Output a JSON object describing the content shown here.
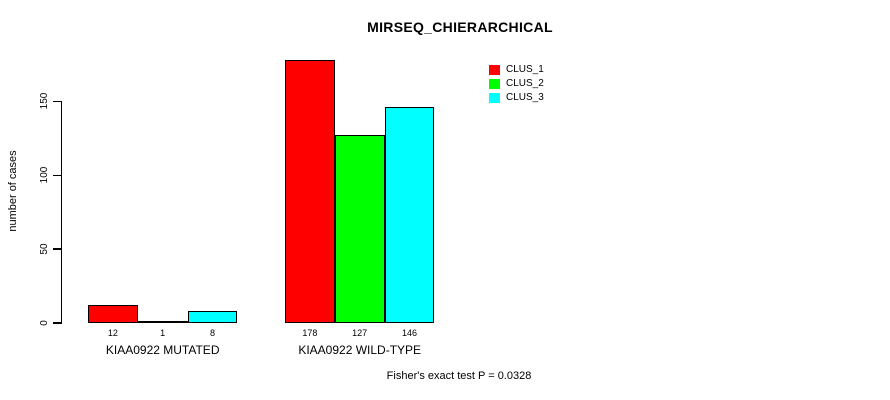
{
  "chart_data": {
    "type": "bar",
    "title": "MIRSEQ_CHIERARCHICAL",
    "ylabel": "number of cases",
    "xlabel": "",
    "categories": [
      "KIAA0922 MUTATED",
      "KIAA0922 WILD-TYPE"
    ],
    "series": [
      {
        "name": "CLUS_1",
        "color": "#ff0000",
        "values": [
          12,
          178
        ]
      },
      {
        "name": "CLUS_2",
        "color": "#00ff00",
        "values": [
          1,
          127
        ]
      },
      {
        "name": "CLUS_3",
        "color": "#00ffff",
        "values": [
          8,
          146
        ]
      }
    ],
    "bar_value_labels": [
      [
        "12",
        "1",
        "8"
      ],
      [
        "178",
        "127",
        "146"
      ]
    ],
    "yticks": [
      0,
      50,
      100,
      150
    ],
    "ylim": [
      0,
      150
    ],
    "grid": false,
    "legend_position": "top-right-inside",
    "annotation": "Fisher's exact test P = 0.0328"
  }
}
